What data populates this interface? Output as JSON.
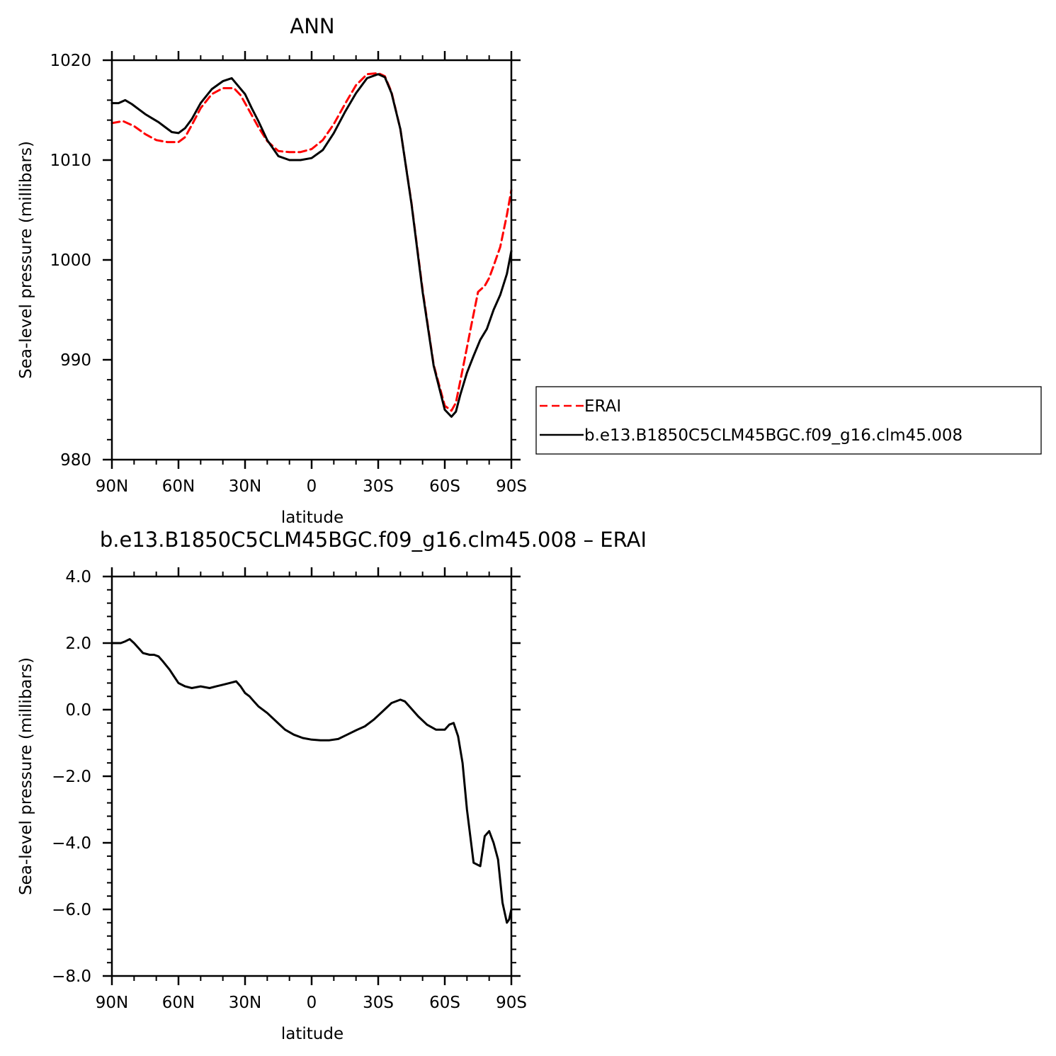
{
  "figure": {
    "background": "#ffffff"
  },
  "chart_data": [
    {
      "type": "line",
      "title": "ANN",
      "xlabel": "latitude",
      "ylabel": "Sea-level pressure (millibars)",
      "xlim": [
        90,
        -90
      ],
      "ylim": [
        980,
        1020
      ],
      "xticks": [
        90,
        60,
        30,
        0,
        -30,
        -60,
        -90
      ],
      "xtick_labels": [
        "90N",
        "60N",
        "30N",
        "0",
        "30S",
        "60S",
        "90S"
      ],
      "yticks": [
        980,
        990,
        1000,
        1010,
        1020
      ],
      "ytick_labels": [
        "980",
        "990",
        "1000",
        "1010",
        "1020"
      ],
      "legend": {
        "placement": "right-outside"
      },
      "series": [
        {
          "name": "ERAI",
          "color": "#ff0000",
          "dash": "dashed",
          "x": [
            90,
            85,
            80,
            75,
            70,
            65,
            60,
            57,
            54,
            50,
            45,
            40,
            35,
            32,
            28,
            24,
            20,
            15,
            10,
            5,
            0,
            -5,
            -10,
            -15,
            -20,
            -25,
            -30,
            -33,
            -36,
            -40,
            -45,
            -50,
            -55,
            -60,
            -63,
            -65,
            -68,
            -72,
            -75,
            -78,
            -80,
            -82,
            -85,
            -88,
            -90
          ],
          "y": [
            1013.7,
            1013.9,
            1013.4,
            1012.6,
            1012.0,
            1011.8,
            1011.8,
            1012.3,
            1013.5,
            1015.2,
            1016.6,
            1017.2,
            1017.2,
            1016.5,
            1014.9,
            1013.3,
            1011.9,
            1010.9,
            1010.8,
            1010.8,
            1011.1,
            1012.0,
            1013.6,
            1015.6,
            1017.5,
            1018.6,
            1018.7,
            1018.4,
            1016.8,
            1013.1,
            1005.7,
            997.0,
            989.5,
            985.4,
            984.9,
            985.7,
            989.0,
            993.5,
            996.8,
            997.4,
            998.2,
            999.4,
            1001.3,
            1004.5,
            1007.0
          ]
        },
        {
          "name": "b.e13.B1850C5CLM45BGC.f09_g16.clm45.008",
          "color": "#000000",
          "dash": "solid",
          "x": [
            90,
            87,
            84,
            81,
            78,
            75,
            72,
            69,
            66,
            63,
            60,
            57,
            54,
            50,
            45,
            40,
            36,
            33,
            30,
            27,
            24,
            20,
            15,
            10,
            5,
            0,
            -5,
            -10,
            -15,
            -20,
            -25,
            -30,
            -33,
            -36,
            -40,
            -45,
            -50,
            -55,
            -60,
            -63,
            -65,
            -67,
            -70,
            -73,
            -76,
            -79,
            -82,
            -85,
            -88,
            -90
          ],
          "y": [
            1015.7,
            1015.7,
            1016.0,
            1015.6,
            1015.1,
            1014.6,
            1014.2,
            1013.8,
            1013.3,
            1012.8,
            1012.7,
            1013.2,
            1014.1,
            1015.7,
            1017.1,
            1017.9,
            1018.2,
            1017.4,
            1016.6,
            1015.2,
            1013.9,
            1012.0,
            1010.4,
            1010.0,
            1010.0,
            1010.2,
            1011.0,
            1012.7,
            1014.8,
            1016.7,
            1018.2,
            1018.6,
            1018.3,
            1016.7,
            1013.1,
            1005.6,
            996.8,
            989.4,
            985.0,
            984.3,
            984.8,
            986.5,
            988.7,
            990.4,
            992.0,
            993.1,
            995.0,
            996.5,
            998.6,
            1000.9
          ]
        }
      ]
    },
    {
      "type": "line",
      "title": "b.e13.B1850C5CLM45BGC.f09_g16.clm45.008 – ERAI",
      "xlabel": "latitude",
      "ylabel": "Sea-level pressure (millibars)",
      "xlim": [
        90,
        -90
      ],
      "ylim": [
        -8.0,
        4.0
      ],
      "xticks": [
        90,
        60,
        30,
        0,
        -30,
        -60,
        -90
      ],
      "xtick_labels": [
        "90N",
        "60N",
        "30N",
        "0",
        "30S",
        "60S",
        "90S"
      ],
      "yticks": [
        -8.0,
        -6.0,
        -4.0,
        -2.0,
        0.0,
        2.0,
        4.0
      ],
      "ytick_labels": [
        "−8.0",
        "−6.0",
        "−4.0",
        "−2.0",
        "0.0",
        "2.0",
        "4.0"
      ],
      "series": [
        {
          "color": "#000000",
          "dash": "solid",
          "x": [
            90,
            86,
            84,
            82,
            80,
            78,
            76,
            73,
            71,
            69,
            67,
            64,
            62,
            60,
            57,
            54,
            50,
            46,
            43,
            40,
            37,
            34,
            32,
            30,
            28,
            26,
            24,
            20,
            16,
            12,
            8,
            4,
            0,
            -4,
            -8,
            -12,
            -16,
            -20,
            -24,
            -28,
            -32,
            -36,
            -40,
            -42,
            -44,
            -48,
            -52,
            -56,
            -60,
            -62,
            -64,
            -66,
            -68,
            -70,
            -73,
            -76,
            -78,
            -80,
            -82,
            -84,
            -86,
            -88,
            -89,
            -90
          ],
          "y": [
            2.0,
            2.0,
            2.05,
            2.12,
            2.0,
            1.85,
            1.7,
            1.65,
            1.65,
            1.6,
            1.45,
            1.2,
            1.0,
            0.8,
            0.7,
            0.65,
            0.7,
            0.65,
            0.7,
            0.75,
            0.8,
            0.85,
            0.7,
            0.5,
            0.4,
            0.25,
            0.1,
            -0.1,
            -0.35,
            -0.6,
            -0.75,
            -0.85,
            -0.9,
            -0.92,
            -0.92,
            -0.88,
            -0.75,
            -0.62,
            -0.5,
            -0.3,
            -0.05,
            0.2,
            0.3,
            0.25,
            0.1,
            -0.2,
            -0.45,
            -0.6,
            -0.6,
            -0.45,
            -0.4,
            -0.8,
            -1.6,
            -3.0,
            -4.6,
            -4.7,
            -3.8,
            -3.65,
            -4.0,
            -4.5,
            -5.8,
            -6.4,
            -6.3,
            -6.0
          ]
        }
      ]
    }
  ]
}
